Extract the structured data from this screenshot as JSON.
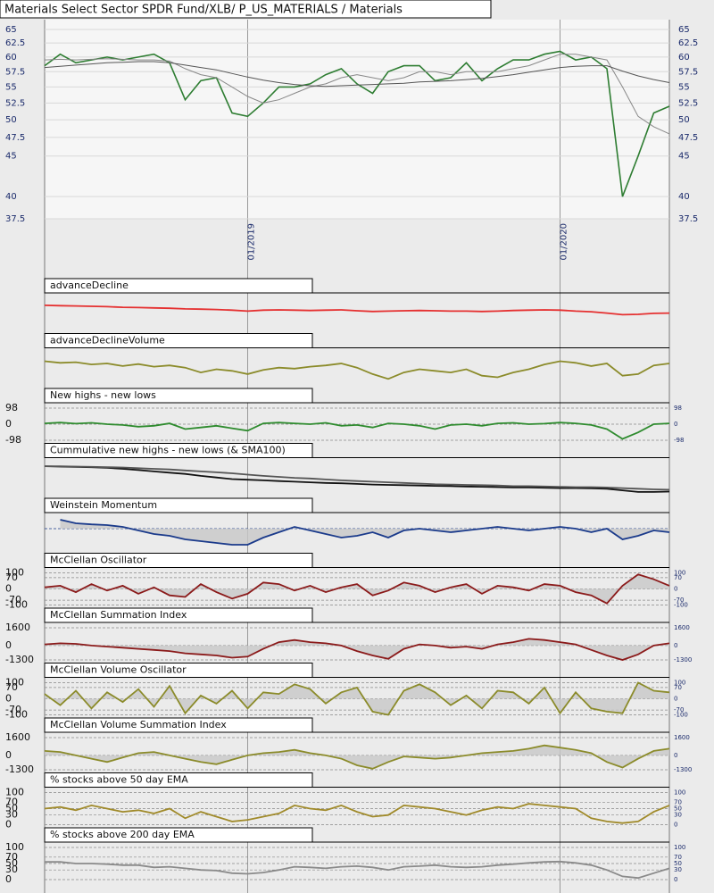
{
  "chart_data": [
    {
      "type": "line",
      "title": "Materials Select Sector SPDR Fund/XLB/ P_US_MATERIALS / Materials",
      "log_scale": true,
      "categories": [
        null,
        null,
        null,
        null,
        null,
        null,
        null,
        null,
        null,
        null,
        null,
        null,
        null,
        "01/2019",
        null,
        null,
        null,
        null,
        null,
        null,
        null,
        null,
        null,
        null,
        null,
        null,
        null,
        null,
        null,
        null,
        null,
        null,
        null,
        "01/2020",
        null,
        null,
        null,
        null,
        null,
        null,
        null
      ],
      "ylim": [
        37.5,
        65
      ],
      "yticks": [
        37.5,
        40,
        45,
        47.5,
        50,
        52.5,
        55,
        57.5,
        60,
        62.5,
        65
      ],
      "grid": true,
      "series": [
        {
          "color": "#2e7d32",
          "values": [
            58.5,
            60.5,
            59,
            59.5,
            60,
            59.5,
            60,
            60.5,
            59,
            53,
            56,
            56.5,
            51,
            50.5,
            52.5,
            55,
            55,
            55.5,
            57,
            58,
            55.5,
            54,
            57.5,
            58.5,
            58.5,
            56,
            56.5,
            59,
            56,
            58,
            59.5,
            59.5,
            60.5,
            61,
            59.5,
            60,
            58,
            40,
            45,
            51,
            52
          ]
        },
        {
          "color": "#888888",
          "values": [
            59.5,
            59.6,
            59.5,
            59.6,
            59.7,
            59.6,
            59.5,
            59.5,
            59.3,
            58,
            57,
            56.5,
            55,
            53.5,
            52.5,
            53,
            54,
            55,
            55.5,
            56.5,
            57,
            56.5,
            56,
            56.5,
            57.5,
            57.5,
            57,
            57.5,
            57.5,
            57.5,
            58,
            58.5,
            59.5,
            60.5,
            60.5,
            60,
            59.5,
            55,
            50.5,
            49,
            48
          ]
        },
        {
          "color": "#555555",
          "values": [
            58.2,
            58.4,
            58.6,
            58.8,
            59,
            59.1,
            59.2,
            59.2,
            59,
            58.6,
            58.2,
            57.8,
            57.2,
            56.6,
            56.1,
            55.7,
            55.4,
            55.2,
            55.1,
            55.2,
            55.3,
            55.4,
            55.5,
            55.6,
            55.8,
            55.9,
            56,
            56.2,
            56.4,
            56.7,
            57,
            57.4,
            57.8,
            58.2,
            58.4,
            58.5,
            58.5,
            57.6,
            56.8,
            56.2,
            55.7
          ]
        }
      ]
    },
    {
      "type": "line",
      "title": "advanceDecline",
      "ylim": [
        0,
        100
      ],
      "series": [
        {
          "color": "#e53030",
          "values": [
            78,
            77,
            76,
            75,
            74,
            72,
            71,
            70,
            69,
            67,
            66,
            65,
            63,
            60,
            63,
            64,
            63,
            62,
            63,
            64,
            61,
            59,
            60,
            61,
            62,
            61,
            60,
            60,
            59,
            60,
            62,
            63,
            64,
            63,
            60,
            58,
            54,
            49,
            50,
            53,
            54
          ]
        }
      ]
    },
    {
      "type": "line",
      "title": "advanceDeclineVolume",
      "ylim": [
        0,
        100
      ],
      "series": [
        {
          "color": "#8b8b2a",
          "values": [
            75,
            70,
            72,
            65,
            68,
            60,
            66,
            58,
            62,
            55,
            40,
            50,
            45,
            35,
            48,
            55,
            52,
            58,
            62,
            68,
            55,
            35,
            20,
            40,
            50,
            45,
            40,
            50,
            30,
            25,
            40,
            50,
            65,
            75,
            70,
            60,
            68,
            30,
            35,
            62,
            68
          ]
        }
      ]
    },
    {
      "type": "line",
      "title": "New highs - new lows",
      "ylim": [
        -98,
        98
      ],
      "yticks": [
        98,
        0,
        -98
      ],
      "series": [
        {
          "color": "#2e8b2e",
          "values": [
            5,
            10,
            3,
            8,
            0,
            -5,
            -15,
            -10,
            5,
            -30,
            -20,
            -10,
            -25,
            -40,
            5,
            10,
            5,
            0,
            8,
            -10,
            -5,
            -20,
            5,
            0,
            -10,
            -30,
            -5,
            0,
            -10,
            5,
            8,
            0,
            3,
            10,
            5,
            -5,
            -30,
            -90,
            -50,
            0,
            5
          ]
        }
      ]
    },
    {
      "type": "line",
      "title": "Cummulative new highs - new lows (& SMA100)",
      "ylim": [
        0,
        100
      ],
      "series": [
        {
          "color": "#111111",
          "values": [
            90,
            89,
            88,
            87,
            85,
            82,
            78,
            74,
            70,
            66,
            60,
            55,
            50,
            48,
            46,
            44,
            42,
            40,
            38,
            37,
            35,
            33,
            32,
            31,
            30,
            29,
            28,
            27,
            26,
            25,
            24,
            24,
            23,
            22,
            22,
            21,
            20,
            15,
            10,
            10,
            11
          ]
        },
        {
          "color": "#555555",
          "values": [
            90,
            90,
            89,
            88,
            87,
            86,
            84,
            82,
            80,
            77,
            74,
            71,
            68,
            64,
            60,
            57,
            54,
            52,
            49,
            46,
            44,
            42,
            40,
            38,
            36,
            34,
            33,
            32,
            31,
            30,
            28,
            28,
            27,
            26,
            25,
            25,
            24,
            22,
            20,
            18,
            17
          ]
        }
      ]
    },
    {
      "type": "line",
      "title": "Weinstein Momentum",
      "ylim": [
        -60,
        30
      ],
      "fill": true,
      "zero_line": true,
      "series": [
        {
          "color": "#1a3a8b",
          "values": [
            null,
            25,
            15,
            12,
            10,
            5,
            -5,
            -15,
            -20,
            -30,
            -35,
            -40,
            -45,
            -45,
            -25,
            -10,
            5,
            -5,
            -15,
            -25,
            -20,
            -10,
            -25,
            -5,
            0,
            -5,
            -10,
            -5,
            0,
            5,
            0,
            -5,
            0,
            5,
            0,
            -10,
            0,
            -30,
            -20,
            -5,
            -10
          ]
        }
      ]
    },
    {
      "type": "line",
      "title": "McClellan Oscillator",
      "ylim": [
        -100,
        100
      ],
      "yticks": [
        100,
        70,
        0,
        -70,
        -100
      ],
      "fill": true,
      "series": [
        {
          "color": "#8b1a1a",
          "values": [
            10,
            20,
            -20,
            30,
            -10,
            20,
            -30,
            10,
            -40,
            -50,
            30,
            -20,
            -60,
            -30,
            40,
            30,
            -10,
            20,
            -20,
            10,
            30,
            -40,
            -10,
            40,
            20,
            -20,
            10,
            30,
            -30,
            20,
            10,
            -10,
            30,
            20,
            -20,
            -40,
            -90,
            20,
            90,
            60,
            20
          ]
        }
      ]
    },
    {
      "type": "line",
      "title": "McClellan Summation Index",
      "ylim": [
        -1300,
        1600
      ],
      "yticks": [
        1600,
        0,
        -1300
      ],
      "fill": true,
      "series": [
        {
          "color": "#8b1a1a",
          "values": [
            100,
            200,
            150,
            0,
            -100,
            -200,
            -300,
            -400,
            -500,
            -700,
            -800,
            -900,
            -1100,
            -1000,
            -300,
            300,
            500,
            300,
            200,
            0,
            -500,
            -900,
            -1200,
            -300,
            100,
            0,
            -200,
            -100,
            -300,
            100,
            300,
            600,
            500,
            300,
            100,
            -400,
            -900,
            -1300,
            -800,
            0,
            200
          ]
        }
      ]
    },
    {
      "type": "line",
      "title": "McClellan Volume Oscillator",
      "ylim": [
        -100,
        100
      ],
      "yticks": [
        100,
        70,
        0,
        -70,
        -100
      ],
      "fill": true,
      "series": [
        {
          "color": "#8b8b2a",
          "values": [
            30,
            -40,
            50,
            -60,
            40,
            -20,
            60,
            -50,
            80,
            -90,
            20,
            -30,
            50,
            -60,
            40,
            30,
            90,
            60,
            -30,
            40,
            70,
            -80,
            -100,
            50,
            90,
            40,
            -40,
            20,
            -60,
            50,
            40,
            -30,
            70,
            -90,
            40,
            -60,
            -80,
            -90,
            100,
            50,
            40
          ]
        }
      ]
    },
    {
      "type": "line",
      "title": "McClellan Volume Summation Index",
      "ylim": [
        -1300,
        1600
      ],
      "yticks": [
        1600,
        0,
        -1300
      ],
      "fill": true,
      "series": [
        {
          "color": "#8b8b2a",
          "values": [
            400,
            300,
            0,
            -300,
            -600,
            -200,
            200,
            300,
            0,
            -300,
            -600,
            -800,
            -400,
            0,
            200,
            300,
            500,
            200,
            0,
            -300,
            -900,
            -1200,
            -600,
            -100,
            -200,
            -300,
            -200,
            0,
            200,
            300,
            400,
            600,
            900,
            700,
            500,
            200,
            -600,
            -1100,
            -300,
            400,
            600
          ]
        }
      ]
    },
    {
      "type": "line",
      "title": "% stocks above 50 day EMA",
      "ylim": [
        0,
        100
      ],
      "yticks": [
        100,
        70,
        50,
        30,
        0
      ],
      "series": [
        {
          "color": "#a08a2a",
          "values": [
            50,
            55,
            45,
            60,
            50,
            40,
            45,
            35,
            50,
            20,
            40,
            25,
            10,
            15,
            25,
            35,
            60,
            50,
            45,
            60,
            40,
            25,
            30,
            60,
            55,
            50,
            40,
            30,
            45,
            55,
            50,
            65,
            60,
            55,
            50,
            20,
            10,
            5,
            10,
            40,
            60
          ]
        }
      ]
    },
    {
      "type": "line",
      "title": "% stocks above 200 day EMA",
      "ylim": [
        0,
        100
      ],
      "yticks": [
        100,
        70,
        50,
        30,
        0
      ],
      "series": [
        {
          "color": "#8a8a8a",
          "values": [
            55,
            55,
            50,
            50,
            48,
            45,
            45,
            38,
            40,
            35,
            30,
            28,
            20,
            18,
            22,
            30,
            40,
            38,
            35,
            40,
            42,
            38,
            30,
            40,
            42,
            45,
            40,
            38,
            40,
            45,
            48,
            52,
            55,
            56,
            52,
            45,
            30,
            10,
            5,
            20,
            35
          ]
        }
      ]
    }
  ]
}
